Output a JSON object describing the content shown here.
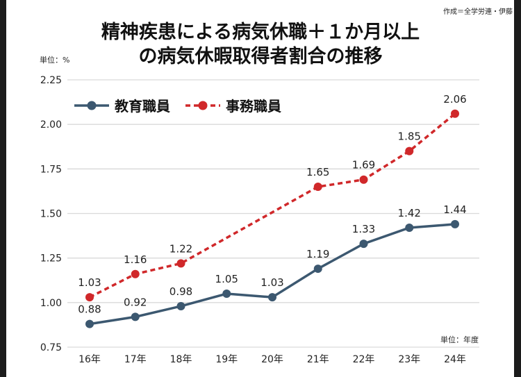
{
  "chart_data": {
    "type": "line",
    "title_lines": [
      "精神疾患による病気休職＋１か月以上",
      "の病気休暇取得者割合の推移"
    ],
    "credit": "作成＝全学労連・伊藤",
    "y_unit": "単位：%",
    "x_unit": "単位：年度",
    "categories": [
      "16年",
      "17年",
      "18年",
      "19年",
      "20年",
      "21年",
      "22年",
      "23年",
      "24年"
    ],
    "ylim": [
      0.75,
      2.25
    ],
    "yticks": [
      "0.75",
      "1.00",
      "1.25",
      "1.50",
      "1.75",
      "2.00",
      "2.25"
    ],
    "grid": true,
    "legend_position": "top-left",
    "series": [
      {
        "name": "教育職員",
        "color": "#3c5870",
        "style": "solid",
        "values": [
          0.88,
          0.92,
          0.98,
          1.05,
          1.03,
          1.19,
          1.33,
          1.42,
          1.44
        ],
        "labels": [
          "0.88",
          "0.92",
          "0.98",
          "1.05",
          "1.03",
          "1.19",
          "1.33",
          "1.42",
          "1.44"
        ]
      },
      {
        "name": "事務職員",
        "color": "#d0282a",
        "style": "dashed",
        "values": [
          1.03,
          1.16,
          1.22,
          null,
          null,
          1.65,
          1.69,
          1.85,
          2.06
        ],
        "labels": [
          "1.03",
          "1.16",
          "1.22",
          null,
          null,
          "1.65",
          "1.69",
          "1.85",
          "2.06"
        ]
      }
    ]
  }
}
